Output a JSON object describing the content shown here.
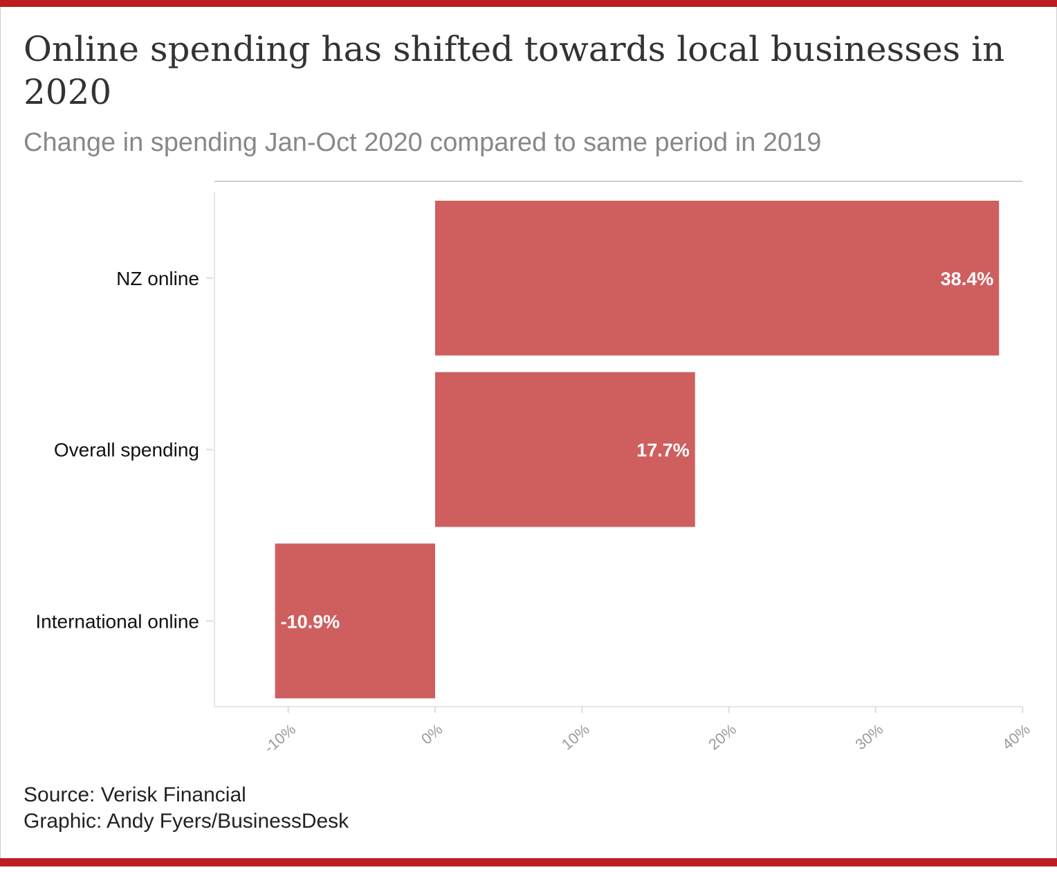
{
  "title": "Online spending has shifted towards local businesses in 2020",
  "subtitle": "Change in spending Jan-Oct 2020 compared to same period in 2019",
  "colors": {
    "accent_rule": "#bc1d22",
    "bar": "#cf5f5f"
  },
  "chart_data": {
    "type": "bar",
    "orientation": "horizontal",
    "categories": [
      "NZ online",
      "Overall spending",
      "International online"
    ],
    "values": [
      38.4,
      17.7,
      -10.9
    ],
    "data_labels": [
      "38.4%",
      "17.7%",
      "-10.9%"
    ],
    "xlim": [
      -15,
      40
    ],
    "x_ticks": [
      -10,
      0,
      10,
      20,
      30,
      40
    ],
    "x_tick_labels": [
      "-10%",
      "0%",
      "10%",
      "20%",
      "30%",
      "40%"
    ],
    "grid": false,
    "legend": "none"
  },
  "footer": {
    "source": "Source: Verisk Financial",
    "credit": "Graphic: Andy Fyers/BusinessDesk"
  }
}
